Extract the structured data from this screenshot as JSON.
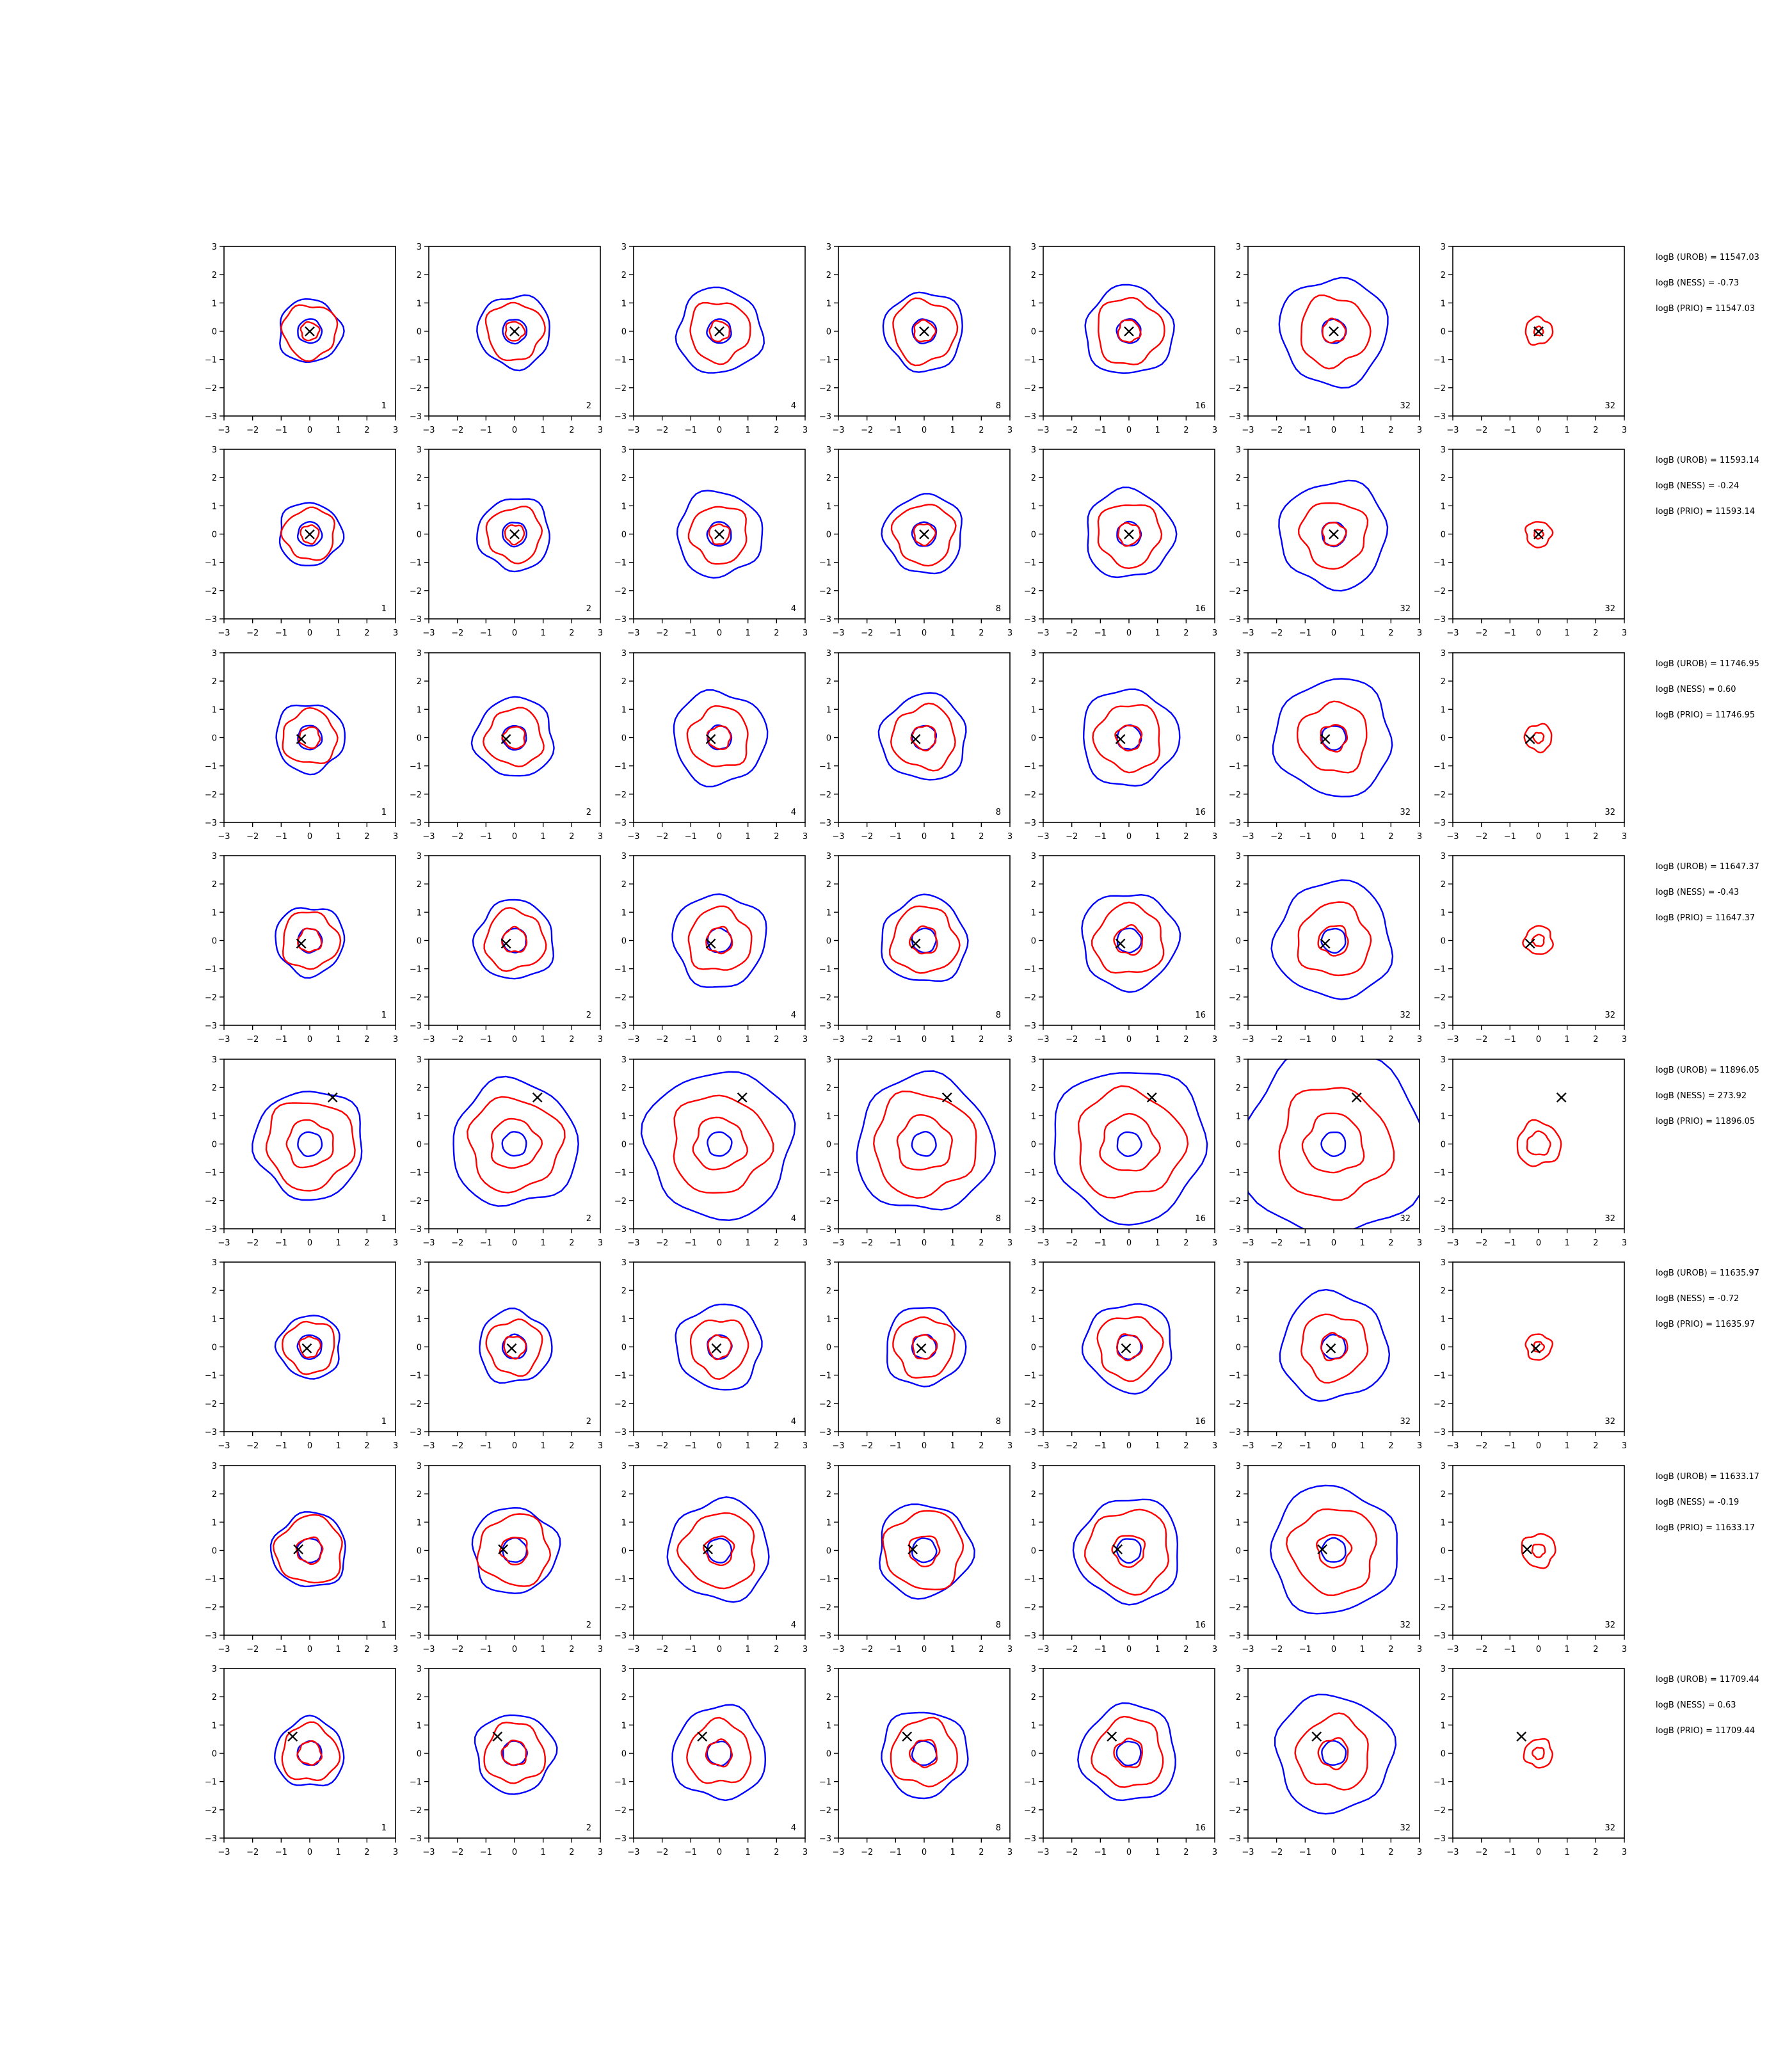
{
  "chart_data": {
    "type": "contour",
    "layout": "grid of 8 rows x 7 columns of contour plots",
    "xlim": [
      -3,
      3
    ],
    "ylim": [
      -3,
      3
    ],
    "xticks": [
      "−3",
      "−2",
      "−1",
      "0",
      "1",
      "2",
      "3"
    ],
    "yticks": [
      "−3",
      "−2",
      "−1",
      "0",
      "1",
      "2",
      "3"
    ],
    "colors": {
      "contour_a": "#0000ff",
      "contour_b": "#ff0000",
      "marker": "#000000"
    },
    "marker_symbol": "×",
    "panel_labels": [
      "1",
      "2",
      "4",
      "8",
      "16",
      "32",
      "32"
    ],
    "rows": [
      {
        "marker": [
          0.0,
          0.0
        ],
        "blue": [
          1.1
        ],
        "red": [
          0.35,
          1.05
        ],
        "stats": [
          "logB (UROB) = 11547.03",
          "logB (NESS) = -0.73",
          "logB (PRIO) = 11547.03"
        ]
      },
      {
        "marker": [
          0.0,
          0.0
        ],
        "blue": [
          1.1
        ],
        "red": [
          0.35,
          1.0
        ],
        "stats": [
          "logB (UROB) = 11593.14",
          "logB (NESS) = -0.24",
          "logB (PRIO) = 11593.14"
        ]
      },
      {
        "marker": [
          -0.3,
          -0.05
        ],
        "blue": [
          1.2
        ],
        "red": [
          0.4,
          1.05
        ],
        "stats": [
          "logB (UROB) = 11746.95",
          "logB (NESS) = 0.60",
          "logB (PRIO) = 11746.95"
        ]
      },
      {
        "marker": [
          -0.3,
          -0.1
        ],
        "blue": [
          1.2
        ],
        "red": [
          0.45,
          1.1
        ],
        "stats": [
          "logB (UROB) = 11647.37",
          "logB (NESS) = -0.43",
          "logB (PRIO) = 11647.37"
        ]
      },
      {
        "marker": [
          0.8,
          1.65
        ],
        "blue": [
          1.9
        ],
        "red": [
          0.9,
          1.7
        ],
        "stats": [
          "logB (UROB) = 11896.05",
          "logB (NESS) = 273.92",
          "logB (PRIO) = 11896.05"
        ]
      },
      {
        "marker": [
          -0.1,
          -0.05
        ],
        "blue": [
          1.1
        ],
        "red": [
          0.4,
          1.0
        ],
        "stats": [
          "logB (UROB) = 11635.97",
          "logB (NESS) = -0.72",
          "logB (PRIO) = 11635.97"
        ]
      },
      {
        "marker": [
          -0.4,
          0.05
        ],
        "blue": [
          1.3
        ],
        "red": [
          0.5,
          1.3
        ],
        "stats": [
          "logB (UROB) = 11633.17",
          "logB (NESS) = -0.19",
          "logB (PRIO) = 11633.17"
        ]
      },
      {
        "marker": [
          -0.6,
          0.6
        ],
        "blue": [
          1.2
        ],
        "red": [
          0.45,
          1.1
        ],
        "stats": [
          "logB (UROB) = 11709.44",
          "logB (NESS) = 0.63",
          "logB (PRIO) = 11709.44"
        ]
      }
    ],
    "column_spread": [
      1.0,
      1.15,
      1.35,
      1.25,
      1.4,
      1.7,
      0.0
    ],
    "last_column_red_scale": 0.45
  }
}
